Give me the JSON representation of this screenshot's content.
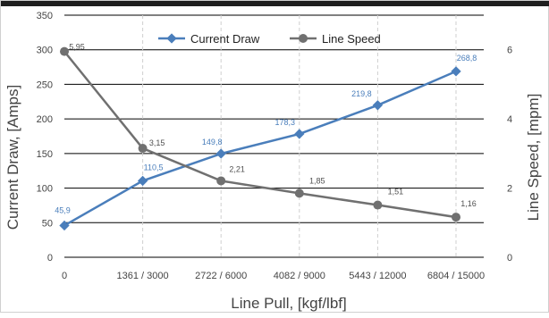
{
  "chart_data": {
    "type": "line",
    "title": "",
    "xlabel": "Line Pull, [kgf/lbf]",
    "ylabel_left": "Current Draw, [Amps]",
    "ylabel_right": "Line Speed, [mpm]",
    "categories": [
      "0",
      "1361 / 3000",
      "2722 / 6000",
      "4082 / 9000",
      "5443 / 12000",
      "6804 / 15000"
    ],
    "ylim_left": [
      0,
      350
    ],
    "ylim_right": [
      0,
      7
    ],
    "yticks_left": [
      "0",
      "50",
      "100",
      "150",
      "200",
      "250",
      "300",
      "350"
    ],
    "yticks_right": [
      "0",
      "2",
      "4",
      "6"
    ],
    "grid": "horizontal",
    "legend_position": "top",
    "series": [
      {
        "name": "Current Draw",
        "axis": "left",
        "color": "#4a7ebb",
        "values": [
          45.9,
          110.5,
          149.8,
          178.3,
          219.8,
          268.8
        ],
        "labels": [
          "45,9",
          "110,5",
          "149,8",
          "178,3",
          "219,8",
          "268,8"
        ]
      },
      {
        "name": "Line Speed",
        "axis": "right",
        "color": "#707070",
        "values": [
          5.95,
          3.15,
          2.21,
          1.85,
          1.51,
          1.16
        ],
        "labels": [
          "5,95",
          "3,15",
          "2,21",
          "1,85",
          "1,51",
          "1,16"
        ]
      }
    ]
  }
}
